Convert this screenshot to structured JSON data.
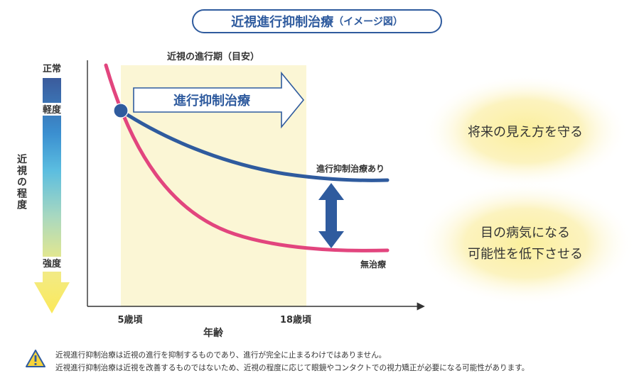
{
  "title": {
    "main": "近視進行抑制治療",
    "sub": "（イメージ図）"
  },
  "yaxis": {
    "label": "近視の程度",
    "top": "正常",
    "mild": "軽度",
    "strong": "強度"
  },
  "xaxis": {
    "label": "年齢",
    "tick_start": "5歳頃",
    "tick_end": "18歳頃"
  },
  "period_label": "近視の進行期（目安）",
  "arrow_label": "進行抑制治療",
  "curves": {
    "treated": {
      "label": "進行抑制治療あり",
      "color": "#2f5b9e"
    },
    "untreated": {
      "label": "無治療",
      "color": "#e2457e"
    }
  },
  "outcomes": {
    "treated": "将来の見え方を守る",
    "untreated_line1": "目の病気になる",
    "untreated_line2": "可能性を低下させる"
  },
  "notes": [
    "近視進行抑制治療は近視の進行を抑制するものであり、進行が完全に止まるわけではありません。",
    "近視進行抑制治療は近視を改善するものではないため、近視の程度に応じて眼鏡やコンタクトでの視力矯正が必要になる可能性があります。"
  ],
  "colors": {
    "accent": "#2f5b9e",
    "pink": "#e2457e",
    "period_band": "#fbf6d5",
    "glow": "#fbf0a8"
  }
}
